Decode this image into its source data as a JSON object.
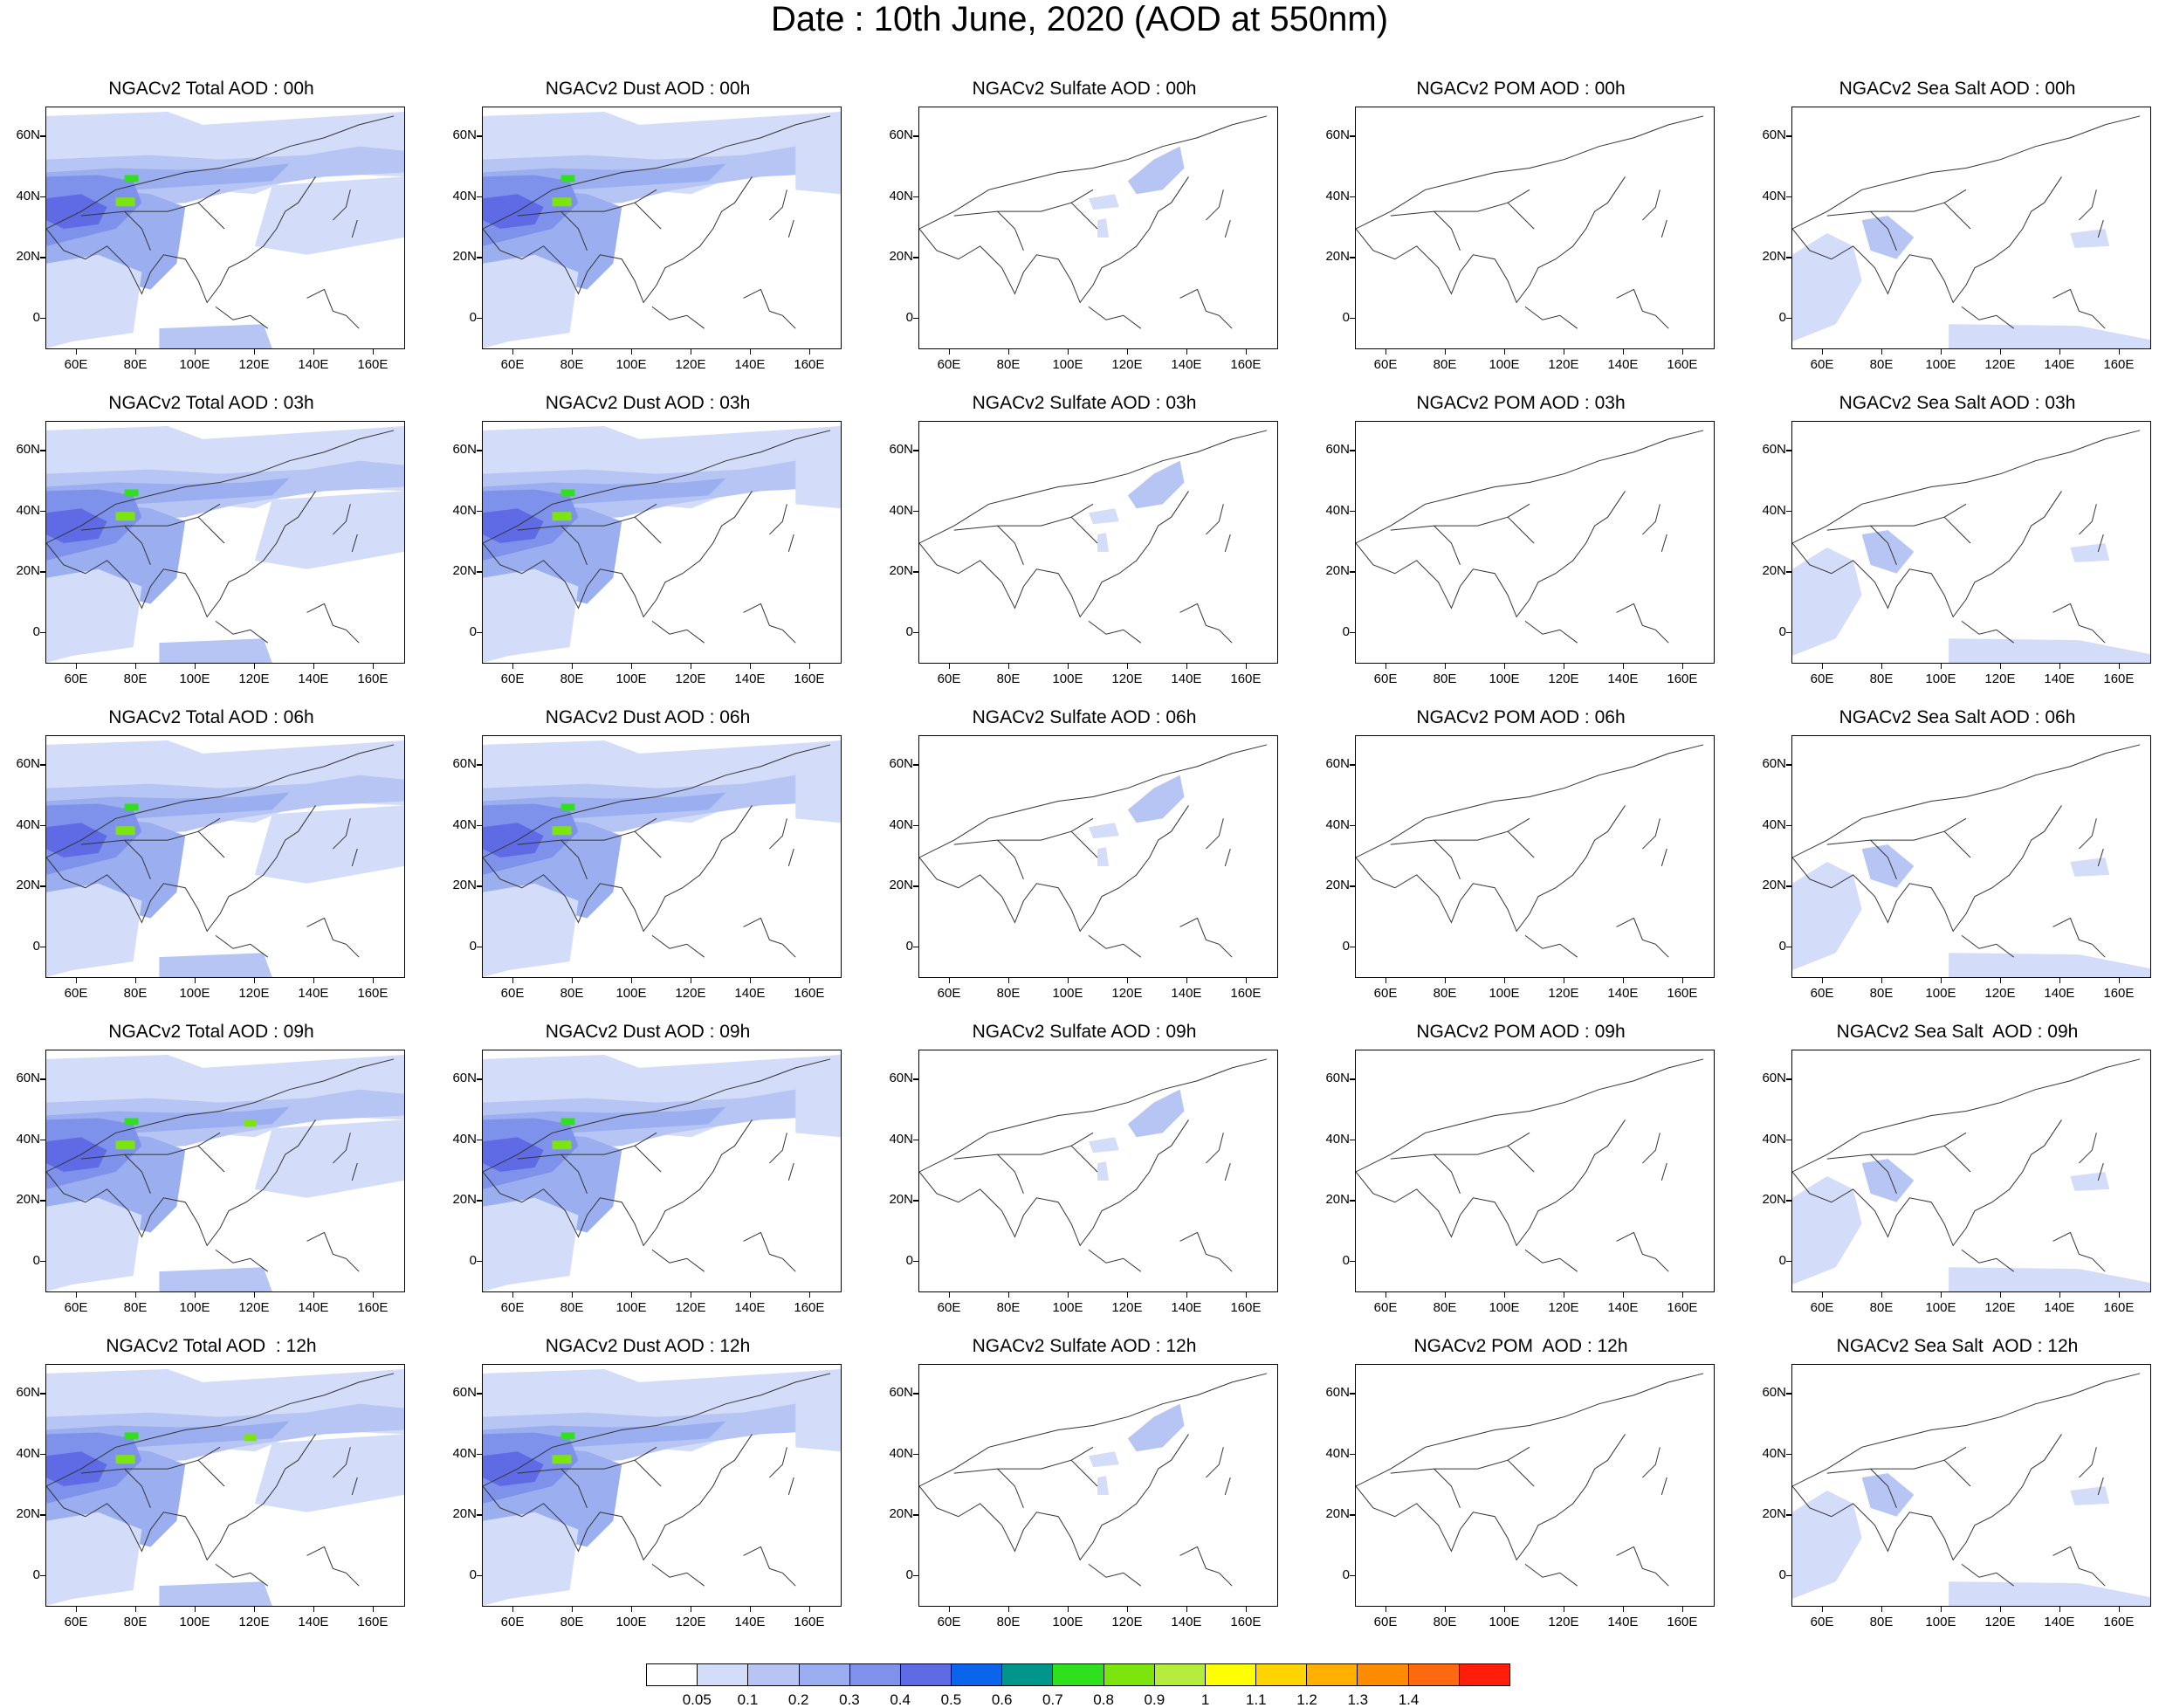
{
  "title": "Date : 10th June, 2020 (AOD at 550nm)",
  "panels": [
    [
      "NGACv2 Total AOD : 00h",
      "NGACv2 Dust AOD : 00h",
      "NGACv2 Sulfate AOD : 00h",
      "NGACv2 POM AOD : 00h",
      "NGACv2 Sea Salt AOD : 00h"
    ],
    [
      "NGACv2 Total AOD : 03h",
      "NGACv2 Dust AOD : 03h",
      "NGACv2 Sulfate AOD : 03h",
      "NGACv2 POM AOD : 03h",
      "NGACv2 Sea Salt AOD : 03h"
    ],
    [
      "NGACv2 Total AOD : 06h",
      "NGACv2 Dust AOD : 06h",
      "NGACv2 Sulfate AOD : 06h",
      "NGACv2 POM AOD : 06h",
      "NGACv2 Sea Salt AOD : 06h"
    ],
    [
      "NGACv2 Total AOD : 09h",
      "NGACv2 Dust AOD : 09h",
      "NGACv2 Sulfate AOD : 09h",
      "NGACv2 POM AOD : 09h",
      "NGACv2 Sea Salt  AOD : 09h"
    ],
    [
      "NGACv2 Total AOD  : 12h",
      "NGACv2 Dust AOD : 12h",
      "NGACv2 Sulfate AOD : 12h",
      "NGACv2 POM  AOD : 12h",
      "NGACv2 Sea Salt  AOD : 12h"
    ]
  ],
  "lat_labels": [
    "60N",
    "40N",
    "20N",
    "0"
  ],
  "lon_labels": [
    "60E",
    "80E",
    "100E",
    "120E",
    "140E",
    "160E"
  ],
  "colorbar": {
    "colors": [
      "#ffffff",
      "#d3dcf8",
      "#b6c5f4",
      "#9aaef0",
      "#7e92ec",
      "#5f6be4",
      "#0a64ec",
      "#00968c",
      "#2fe01c",
      "#7ce50e",
      "#b4ed3e",
      "#ffff00",
      "#ffd400",
      "#ffb000",
      "#ff8c00",
      "#ff6a10",
      "#ff1e0a"
    ],
    "labels": [
      "0.05",
      "0.1",
      "0.2",
      "0.3",
      "0.4",
      "0.5",
      "0.6",
      "0.7",
      "0.8",
      "0.9",
      "1",
      "1.1",
      "1.2",
      "1.3",
      "1.4"
    ]
  }
}
